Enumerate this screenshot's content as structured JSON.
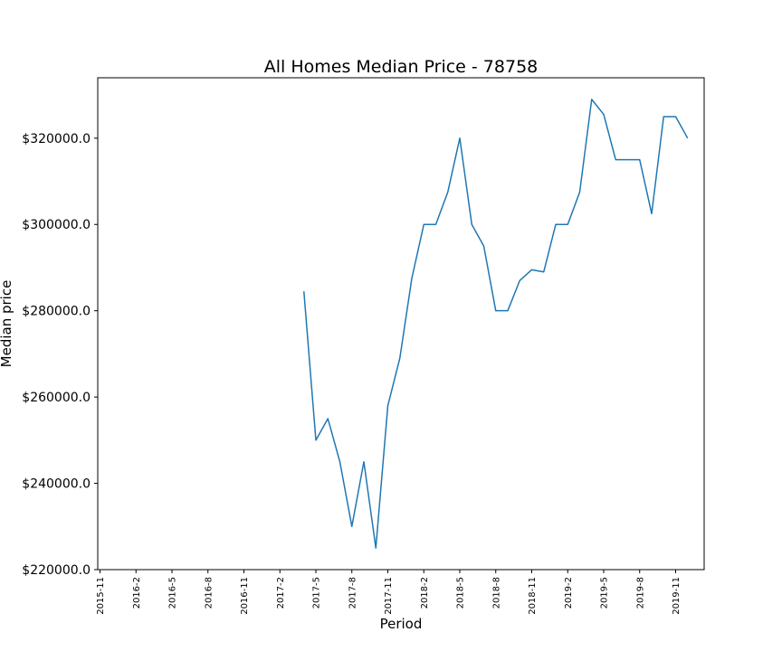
{
  "chart_data": {
    "type": "line",
    "title": "All Homes Median Price - 78758",
    "xlabel": "Period",
    "ylabel": "Median price",
    "ylim": [
      220000,
      334000
    ],
    "grid": false,
    "legend": "none",
    "line_color": "#1f77b4",
    "x_ticks": [
      "2015-11",
      "2016-2",
      "2016-5",
      "2016-8",
      "2016-11",
      "2017-2",
      "2017-5",
      "2017-8",
      "2017-11",
      "2018-2",
      "2018-5",
      "2018-8",
      "2018-11",
      "2019-2",
      "2019-5",
      "2019-8",
      "2019-11"
    ],
    "y_ticks": [
      220000,
      240000,
      260000,
      280000,
      300000,
      320000
    ],
    "y_tick_labels": [
      "$220000.0",
      "$240000.0",
      "$260000.0",
      "$280000.0",
      "$300000.0",
      "$320000.0"
    ],
    "series": [
      {
        "x": [
          "2017-4",
          "2017-5",
          "2017-6",
          "2017-7",
          "2017-8",
          "2017-9",
          "2017-10",
          "2017-11",
          "2017-12",
          "2018-1",
          "2018-2",
          "2018-3",
          "2018-4",
          "2018-5",
          "2018-6",
          "2018-7",
          "2018-8",
          "2018-9",
          "2018-10",
          "2018-11",
          "2018-12",
          "2019-1",
          "2019-2",
          "2019-3",
          "2019-4",
          "2019-5",
          "2019-6",
          "2019-7",
          "2019-8",
          "2019-9",
          "2019-10",
          "2019-11",
          "2019-12"
        ],
        "values": [
          284500,
          250000,
          255000,
          245000,
          230000,
          245000,
          225000,
          258000,
          269000,
          287500,
          300000,
          300000,
          307500,
          320000,
          300000,
          295000,
          280000,
          280000,
          287000,
          289500,
          289000,
          300000,
          300000,
          307500,
          329000,
          325500,
          315000,
          315000,
          315000,
          302500,
          325000,
          325000,
          320000
        ]
      }
    ]
  }
}
